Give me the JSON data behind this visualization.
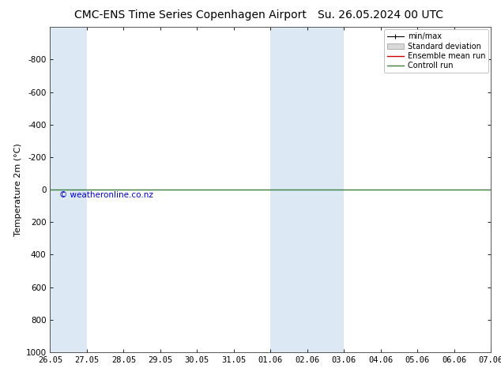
{
  "title": "CMC-ENS Time Series Copenhagen Airport",
  "title2": "Su. 26.05.2024 00 UTC",
  "ylabel": "Temperature 2m (°C)",
  "ylim": [
    -1000,
    1000
  ],
  "yticks": [
    -800,
    -600,
    -400,
    -200,
    0,
    200,
    400,
    600,
    800,
    1000
  ],
  "xtick_dates": [
    "26.05",
    "27.05",
    "28.05",
    "29.05",
    "30.05",
    "31.05",
    "01.06",
    "02.06",
    "03.06",
    "04.06",
    "05.06",
    "06.06",
    "07.06"
  ],
  "shaded_regions": [
    {
      "xstart": 0,
      "xend": 1,
      "color": "#dce9f5"
    },
    {
      "xstart": 6,
      "xend": 8,
      "color": "#dce9f5"
    }
  ],
  "green_line_y": 0,
  "green_line_color": "#3a7d3a",
  "red_line_color": "#cc0000",
  "background_color": "#ffffff",
  "plot_bg_color": "#ffffff",
  "watermark": "© weatheronline.co.nz",
  "watermark_color": "#0000cc",
  "legend_items": [
    "min/max",
    "Standard deviation",
    "Ensemble mean run",
    "Controll run"
  ],
  "legend_colors": [
    "#000000",
    "#c8c8c8",
    "#cc0000",
    "#3a7d3a"
  ],
  "title_fontsize": 10,
  "axis_fontsize": 8,
  "tick_fontsize": 7.5,
  "watermark_fontsize": 7.5
}
